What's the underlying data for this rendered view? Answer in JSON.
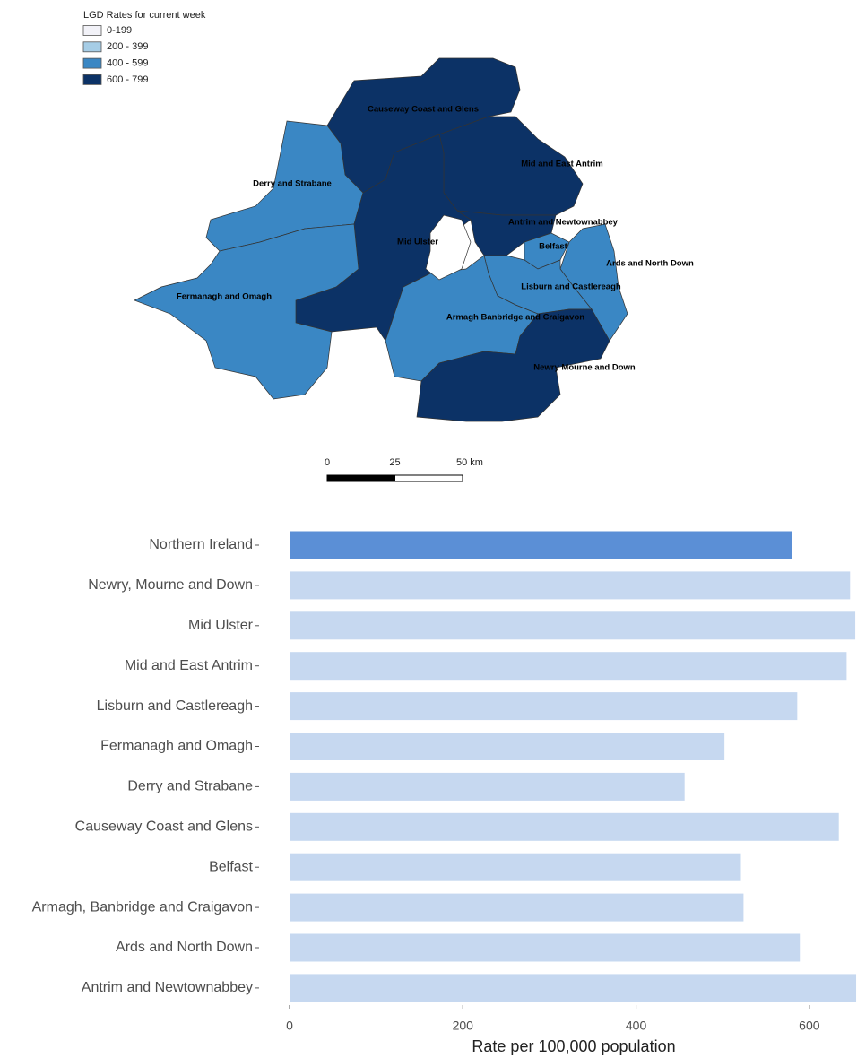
{
  "map": {
    "legend_title": "LGD Rates for current week",
    "legend": [
      {
        "label": "0-199",
        "color": "#f2f2f8"
      },
      {
        "label": "200 - 399",
        "color": "#a6cde6"
      },
      {
        "label": "400 - 599",
        "color": "#3a87c4"
      },
      {
        "label": "600 - 799",
        "color": "#0c3266"
      }
    ],
    "regions": [
      {
        "name": "Causeway Coast and Glens",
        "color": "#0c3266"
      },
      {
        "name": "Derry and Strabane",
        "color": "#3a87c4"
      },
      {
        "name": "Mid and East Antrim",
        "color": "#0c3266"
      },
      {
        "name": "Antrim and Newtownabbey",
        "color": "#0c3266"
      },
      {
        "name": "Mid Ulster",
        "color": "#0c3266"
      },
      {
        "name": "Belfast",
        "color": "#3a87c4"
      },
      {
        "name": "Ards and North Down",
        "color": "#3a87c4"
      },
      {
        "name": "Lisburn and Castlereagh",
        "color": "#3a87c4"
      },
      {
        "name": "Fermanagh and Omagh",
        "color": "#3a87c4"
      },
      {
        "name": "Armagh Banbridge and Craigavon",
        "color": "#3a87c4"
      },
      {
        "name": "Newry Mourne and Down",
        "color": "#0c3266"
      }
    ],
    "scale_bar": {
      "ticks": [
        0,
        25,
        {
          "value": 50,
          "label": "50 km"
        }
      ]
    }
  },
  "chart_data": {
    "type": "barh",
    "categories": [
      "Northern Ireland",
      "Newry, Mourne and Down",
      "Mid Ulster",
      "Mid and East Antrim",
      "Lisburn and Castlereagh",
      "Fermanagh and Omagh",
      "Derry and Strabane",
      "Causeway Coast and Glens",
      "Belfast",
      "Armagh, Banbridge and Craigavon",
      "Ards and North Down",
      "Antrim and Newtownabbey"
    ],
    "values": [
      580,
      647,
      653,
      643,
      586,
      502,
      456,
      634,
      521,
      524,
      589,
      654
    ],
    "bar_colors": [
      "#5b8fd6",
      "#c6d8f0",
      "#c6d8f0",
      "#c6d8f0",
      "#c6d8f0",
      "#c6d8f0",
      "#c6d8f0",
      "#c6d8f0",
      "#c6d8f0",
      "#c6d8f0",
      "#c6d8f0",
      "#c6d8f0"
    ],
    "xlabel": "Rate per 100,000 population",
    "xlim": [
      0,
      655
    ],
    "xticks": [
      0,
      200,
      400,
      600
    ],
    "grid": false
  }
}
